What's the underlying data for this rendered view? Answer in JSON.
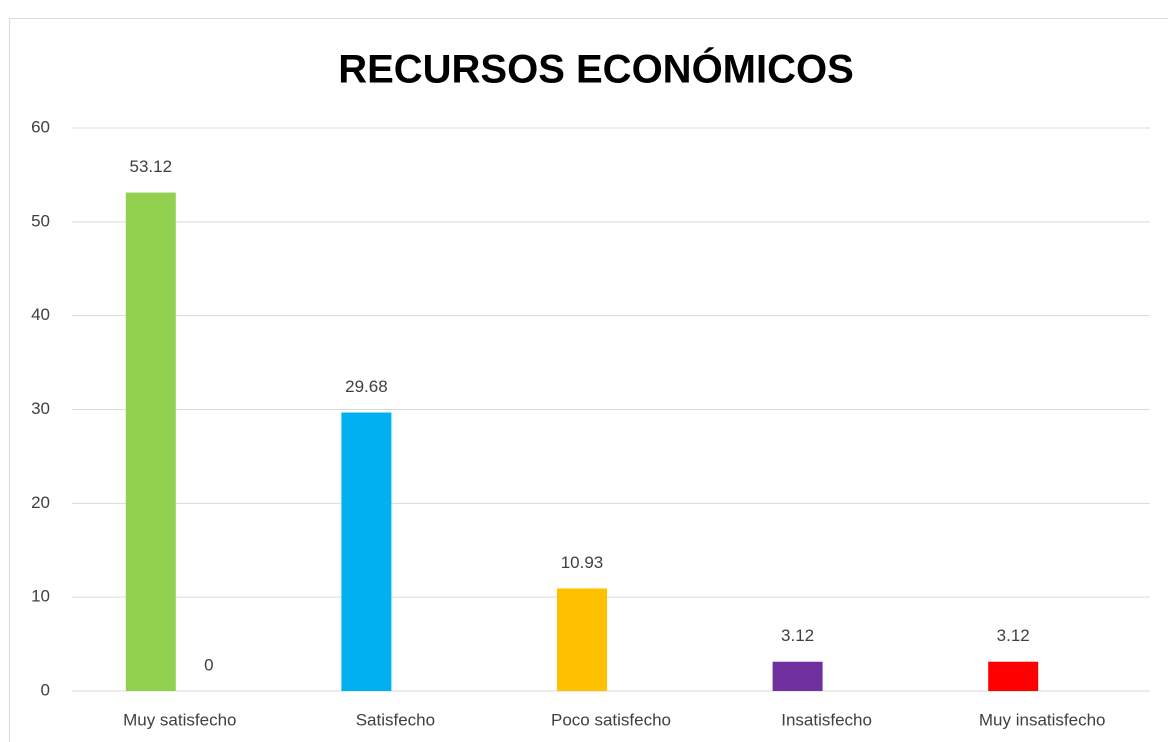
{
  "chart_data": {
    "type": "bar",
    "title": "RECURSOS ECONÓMICOS",
    "categories": [
      "Muy satisfecho",
      "Satisfecho",
      "Poco satisfecho",
      "Insatisfecho",
      "Muy insatisfecho"
    ],
    "series": [
      {
        "colors": [
          "#92d050",
          "#00b0f0",
          "#ffc000",
          "#7030a0",
          "#ff0000"
        ],
        "values": [
          53.12,
          29.68,
          10.93,
          3.12,
          3.12
        ]
      },
      {
        "color": "#a5a5a5",
        "values": [
          0,
          null,
          null,
          null,
          null
        ]
      }
    ],
    "ylim": [
      0,
      60
    ],
    "yticks": [
      0,
      10,
      20,
      30,
      40,
      50,
      60
    ],
    "grid": true,
    "data_labels": true
  }
}
